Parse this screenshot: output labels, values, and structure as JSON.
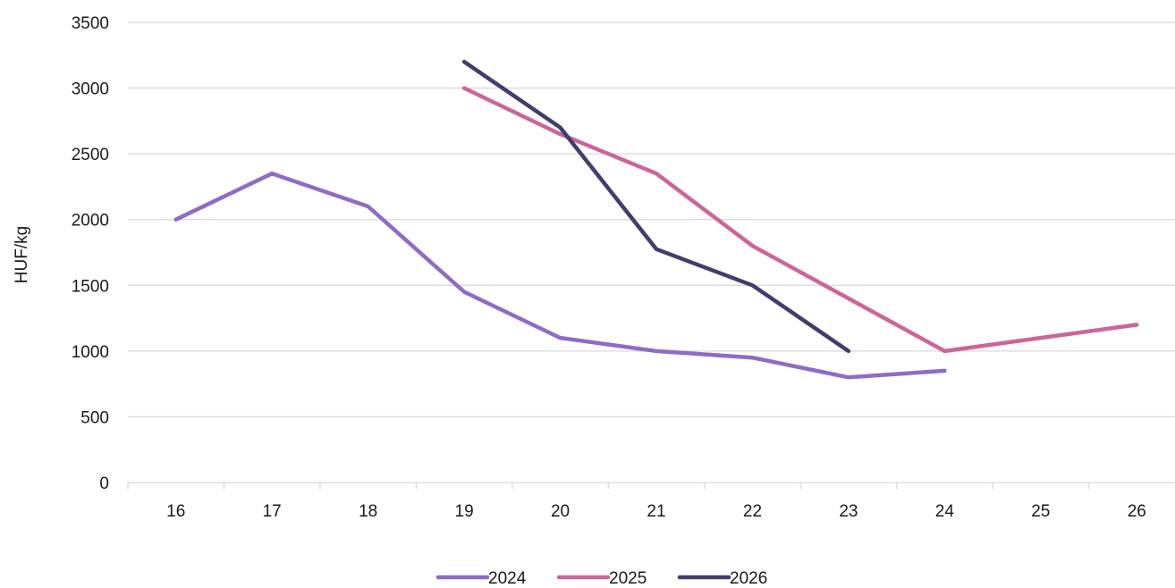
{
  "chart_data": {
    "type": "line",
    "ylabel": "HUF/kg",
    "xlabel": "",
    "x": [
      16,
      17,
      18,
      19,
      20,
      21,
      22,
      23,
      24,
      25,
      26
    ],
    "ylim": [
      0,
      3500
    ],
    "yticks": [
      0,
      500,
      1000,
      1500,
      2000,
      2500,
      3000,
      3500
    ],
    "grid": true,
    "legend_position": "bottom",
    "series": [
      {
        "name": "2024",
        "color": "#8e6cc6",
        "points": [
          [
            16,
            2000
          ],
          [
            17,
            2350
          ],
          [
            18,
            2100
          ],
          [
            19,
            1450
          ],
          [
            20,
            1100
          ],
          [
            21,
            1000
          ],
          [
            22,
            950
          ],
          [
            23,
            800
          ],
          [
            24,
            850
          ]
        ]
      },
      {
        "name": "2025",
        "color": "#cc6699",
        "points": [
          [
            19,
            3000
          ],
          [
            20,
            2650
          ],
          [
            21,
            2350
          ],
          [
            22,
            1800
          ],
          [
            23,
            1400
          ],
          [
            24,
            1000
          ],
          [
            25,
            1100
          ],
          [
            26,
            1200
          ]
        ]
      },
      {
        "name": "2026",
        "color": "#423e6b",
        "points": [
          [
            19,
            3200
          ],
          [
            20,
            2700
          ],
          [
            21,
            1775
          ],
          [
            22,
            1500
          ],
          [
            23,
            1000
          ]
        ]
      }
    ]
  }
}
